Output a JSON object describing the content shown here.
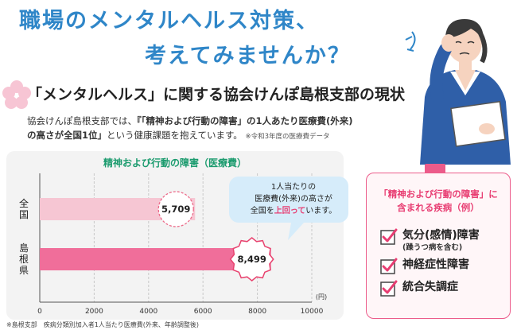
{
  "headline": {
    "line1": "職場のメンタルヘルス対策、",
    "line2": "考えてみませんか？"
  },
  "section": {
    "title": "「メンタルヘルス」に関する協会けんぽ島根支部の現状"
  },
  "description": {
    "line1_pre": "協会けんぽ島根支部では、",
    "line1_bold": "『「精神および行動の障害」の1人あたり医療費(外来)",
    "line2_bold": "の高さが全国1位」",
    "line2_post": "という健康課題を抱えています。",
    "note": "※令和3年度の医療費データ"
  },
  "chart_data": {
    "type": "bar",
    "title": "精神および行動の障害（医療費）",
    "orientation": "horizontal",
    "categories": [
      "全国",
      "島根県"
    ],
    "values": [
      5709,
      8499
    ],
    "value_labels": [
      "5,709",
      "8,499"
    ],
    "xlim": [
      0,
      10000
    ],
    "x_ticks": [
      "0",
      "2000",
      "4000",
      "6000",
      "8000",
      "10000"
    ],
    "x_unit": "(円)",
    "bar_colors": [
      "#f6c6d3",
      "#f06e9a"
    ],
    "grid": true
  },
  "callout": {
    "line1": "1人当たりの",
    "line2": "医療費(外来)の高さが",
    "line3_pre": "全国を",
    "line3_em": "上回って",
    "line3_post": "います。"
  },
  "diseases": {
    "title_line1": "「精神および行動の障害」に",
    "title_line2": "含まれる疾病（例）",
    "items": [
      {
        "label": "気分(感情)障害",
        "sub": "(躁うつ病を含む)"
      },
      {
        "label": "神経症性障害",
        "sub": ""
      },
      {
        "label": "統合失調症",
        "sub": ""
      }
    ]
  },
  "footer": {
    "text": "※島根支部　疾病分類別加入者1人当たり医療費(外来、年齢調整後)"
  },
  "colors": {
    "headline": "#2f86c8",
    "accent_pink": "#e83d72",
    "chart_title": "#1b9b6e",
    "callout_bg": "#d6ecfa"
  }
}
